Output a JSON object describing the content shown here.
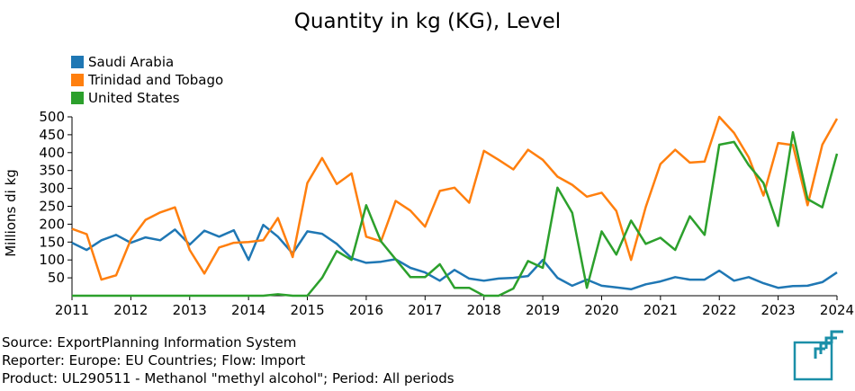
{
  "colors": {
    "saudi": "#1f77b4",
    "trinidad": "#ff7f0e",
    "us": "#2ca02c",
    "logo": "#1b8fa8"
  },
  "chart_data": {
    "type": "line",
    "title": "Quantity in kg (KG), Level",
    "ylabel": "Millions di kg",
    "xlabel": "",
    "xlim": [
      2011,
      2024
    ],
    "ylim": [
      0,
      500
    ],
    "x_ticks": [
      "2011",
      "2012",
      "2013",
      "2014",
      "2015",
      "2016",
      "2017",
      "2018",
      "2019",
      "2020",
      "2021",
      "2022",
      "2023",
      "2024"
    ],
    "y_ticks": [
      "50",
      "100",
      "150",
      "200",
      "250",
      "300",
      "350",
      "400",
      "450",
      "500"
    ],
    "legend_position": "top-left",
    "x": [
      2011,
      2011.25,
      2011.5,
      2011.75,
      2012,
      2012.25,
      2012.5,
      2012.75,
      2013,
      2013.25,
      2013.5,
      2013.75,
      2014,
      2014.25,
      2014.5,
      2014.75,
      2015,
      2015.25,
      2015.5,
      2015.75,
      2016,
      2016.25,
      2016.5,
      2016.75,
      2017,
      2017.25,
      2017.5,
      2017.75,
      2018,
      2018.25,
      2018.5,
      2018.75,
      2019,
      2019.25,
      2019.5,
      2019.75,
      2020,
      2020.25,
      2020.5,
      2020.75,
      2021,
      2021.25,
      2021.5,
      2021.75,
      2022,
      2022.25,
      2022.5,
      2022.75,
      2023,
      2023.25,
      2023.5,
      2023.75,
      2024
    ],
    "series": [
      {
        "name": "Saudi Arabia",
        "color": "#1f77b4",
        "values": [
          148,
          128,
          155,
          170,
          148,
          163,
          155,
          185,
          143,
          182,
          165,
          183,
          100,
          198,
          165,
          118,
          180,
          173,
          145,
          105,
          92,
          95,
          102,
          78,
          65,
          42,
          72,
          48,
          42,
          48,
          50,
          55,
          100,
          50,
          28,
          45,
          28,
          23,
          18,
          32,
          40,
          52,
          45,
          45,
          70,
          42,
          52,
          35,
          22,
          27,
          28,
          38,
          65
        ]
      },
      {
        "name": "Trinidad and Tobago",
        "color": "#ff7f0e",
        "values": [
          187,
          172,
          45,
          57,
          157,
          212,
          233,
          247,
          128,
          62,
          135,
          148,
          150,
          155,
          217,
          108,
          315,
          385,
          312,
          342,
          165,
          152,
          265,
          238,
          193,
          293,
          302,
          260,
          405,
          380,
          353,
          408,
          380,
          333,
          310,
          277,
          288,
          237,
          100,
          248,
          368,
          408,
          372,
          375,
          500,
          455,
          387,
          280,
          427,
          421,
          253,
          422,
          495
        ]
      },
      {
        "name": "United States",
        "color": "#2ca02c",
        "values": [
          0,
          0,
          0,
          0,
          0,
          0,
          0,
          0,
          0,
          0,
          0,
          0,
          0,
          0,
          4,
          0,
          0,
          50,
          125,
          100,
          253,
          152,
          102,
          52,
          52,
          88,
          22,
          22,
          0,
          0,
          20,
          97,
          78,
          302,
          232,
          22,
          180,
          115,
          210,
          145,
          162,
          128,
          222,
          170,
          422,
          430,
          365,
          315,
          195,
          457,
          270,
          247,
          397
        ]
      }
    ]
  },
  "footer": {
    "source": "Source: ExportPlanning Information System",
    "reporter": "Reporter: Europe: EU Countries; Flow: Import",
    "product": "Product: UL290511 - Methanol \"methyl alcohol\"; Period: All periods"
  }
}
